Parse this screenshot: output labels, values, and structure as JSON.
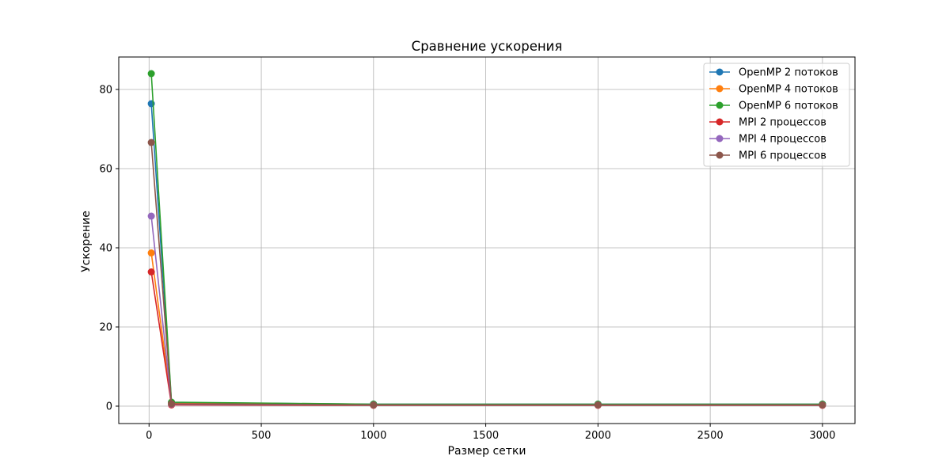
{
  "chart_data": {
    "type": "line",
    "title": "Сравнение ускорения",
    "xlabel": "Размер сетки",
    "ylabel": "Ускорение",
    "x": [
      10,
      100,
      1000,
      2000,
      3000
    ],
    "xlim": [
      -135,
      3145
    ],
    "ylim": [
      -4.4,
      88.2
    ],
    "xticks": [
      0,
      500,
      1000,
      1500,
      2000,
      2500,
      3000
    ],
    "xtick_labels": [
      "0",
      "500",
      "1000",
      "1500",
      "2000",
      "2500",
      "3000"
    ],
    "yticks": [
      0,
      20,
      40,
      60,
      80
    ],
    "ytick_labels": [
      "0",
      "20",
      "40",
      "60",
      "80"
    ],
    "grid": true,
    "legend_position": "top-right",
    "marker": "circle",
    "series": [
      {
        "name": "OpenMP 2 потоков",
        "color": "#1f77b4",
        "values": [
          76.4,
          0.9,
          0.5,
          0.5,
          0.5
        ]
      },
      {
        "name": "OpenMP 4 потоков",
        "color": "#ff7f0e",
        "values": [
          38.7,
          0.7,
          0.4,
          0.4,
          0.4
        ]
      },
      {
        "name": "OpenMP 6 потоков",
        "color": "#2ca02c",
        "values": [
          84.0,
          1.0,
          0.5,
          0.5,
          0.5
        ]
      },
      {
        "name": "MPI 2 процессов",
        "color": "#d62728",
        "values": [
          33.9,
          0.3,
          0.2,
          0.2,
          0.2
        ]
      },
      {
        "name": "MPI 4 процессов",
        "color": "#9467bd",
        "values": [
          48.0,
          0.5,
          0.3,
          0.3,
          0.3
        ]
      },
      {
        "name": "MPI 6 процессов",
        "color": "#8c564b",
        "values": [
          66.6,
          0.6,
          0.3,
          0.3,
          0.3
        ]
      }
    ]
  }
}
